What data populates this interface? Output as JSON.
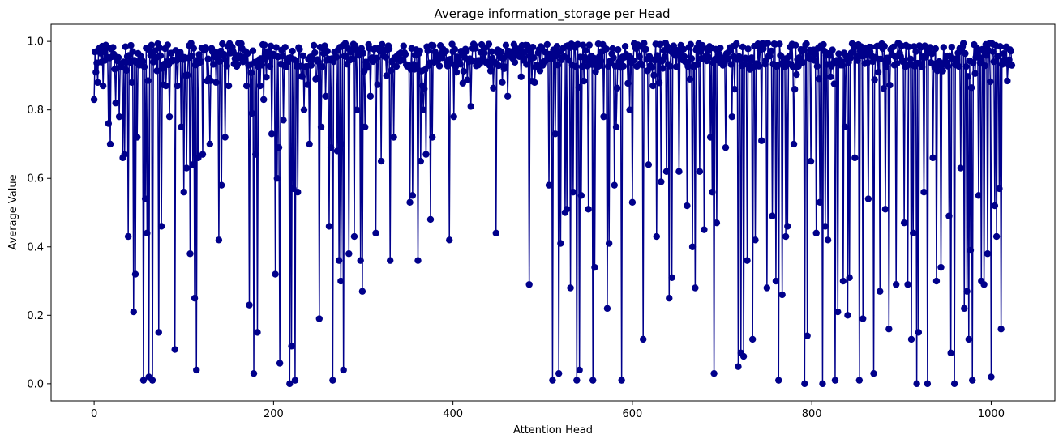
{
  "chart_data": {
    "type": "line",
    "title": "Average information_storage per Head",
    "xlabel": "Attention Head",
    "ylabel": "Average Value",
    "xlim": [
      -48,
      1071
    ],
    "ylim": [
      -0.05,
      1.05
    ],
    "xticks": [
      0,
      200,
      400,
      600,
      800,
      1000
    ],
    "yticks": [
      0.0,
      0.2,
      0.4,
      0.6,
      0.8,
      1.0
    ],
    "xtick_labels": [
      "0",
      "200",
      "400",
      "600",
      "800",
      "1000"
    ],
    "ytick_labels": [
      "0.0",
      "0.2",
      "0.4",
      "0.6",
      "0.8",
      "1.0"
    ],
    "grid": false,
    "series": [
      {
        "color": "#00008b",
        "marker": "circle",
        "n_points": 1024,
        "baseline": 0.96,
        "values_note_removed": true,
        "dips": [
          [
            0,
            0.83
          ],
          [
            2,
            0.91
          ],
          [
            4,
            0.88
          ],
          [
            10,
            0.87
          ],
          [
            16,
            0.76
          ],
          [
            18,
            0.7
          ],
          [
            24,
            0.82
          ],
          [
            28,
            0.78
          ],
          [
            32,
            0.66
          ],
          [
            34,
            0.67
          ],
          [
            38,
            0.43
          ],
          [
            42,
            0.88
          ],
          [
            44,
            0.21
          ],
          [
            46,
            0.32
          ],
          [
            48,
            0.72
          ],
          [
            55,
            0.01
          ],
          [
            57,
            0.54
          ],
          [
            59,
            0.44
          ],
          [
            61,
            0.02
          ],
          [
            65,
            0.01
          ],
          [
            72,
            0.15
          ],
          [
            75,
            0.46
          ],
          [
            80,
            0.87
          ],
          [
            84,
            0.78
          ],
          [
            90,
            0.1
          ],
          [
            93,
            0.87
          ],
          [
            97,
            0.75
          ],
          [
            100,
            0.56
          ],
          [
            103,
            0.63
          ],
          [
            107,
            0.38
          ],
          [
            110,
            0.64
          ],
          [
            112,
            0.25
          ],
          [
            114,
            0.04
          ],
          [
            116,
            0.66
          ],
          [
            121,
            0.67
          ],
          [
            129,
            0.7
          ],
          [
            136,
            0.88
          ],
          [
            139,
            0.42
          ],
          [
            142,
            0.58
          ],
          [
            146,
            0.72
          ],
          [
            170,
            0.87
          ],
          [
            173,
            0.23
          ],
          [
            176,
            0.79
          ],
          [
            178,
            0.03
          ],
          [
            180,
            0.67
          ],
          [
            182,
            0.15
          ],
          [
            185,
            0.87
          ],
          [
            189,
            0.83
          ],
          [
            198,
            0.73
          ],
          [
            202,
            0.32
          ],
          [
            204,
            0.6
          ],
          [
            206,
            0.69
          ],
          [
            207,
            0.06
          ],
          [
            211,
            0.77
          ],
          [
            218,
            0.0
          ],
          [
            220,
            0.11
          ],
          [
            222,
            0.57
          ],
          [
            224,
            0.01
          ],
          [
            227,
            0.56
          ],
          [
            234,
            0.8
          ],
          [
            240,
            0.7
          ],
          [
            247,
            0.89
          ],
          [
            251,
            0.19
          ],
          [
            253,
            0.75
          ],
          [
            258,
            0.84
          ],
          [
            262,
            0.46
          ],
          [
            264,
            0.69
          ],
          [
            266,
            0.01
          ],
          [
            271,
            0.68
          ],
          [
            273,
            0.36
          ],
          [
            275,
            0.3
          ],
          [
            276,
            0.7
          ],
          [
            278,
            0.04
          ],
          [
            284,
            0.38
          ],
          [
            290,
            0.43
          ],
          [
            293,
            0.8
          ],
          [
            297,
            0.36
          ],
          [
            299,
            0.27
          ],
          [
            302,
            0.75
          ],
          [
            308,
            0.84
          ],
          [
            314,
            0.44
          ],
          [
            320,
            0.65
          ],
          [
            326,
            0.9
          ],
          [
            330,
            0.36
          ],
          [
            334,
            0.72
          ],
          [
            352,
            0.53
          ],
          [
            355,
            0.55
          ],
          [
            361,
            0.36
          ],
          [
            364,
            0.65
          ],
          [
            367,
            0.8
          ],
          [
            370,
            0.67
          ],
          [
            375,
            0.48
          ],
          [
            377,
            0.72
          ],
          [
            396,
            0.42
          ],
          [
            401,
            0.78
          ],
          [
            404,
            0.91
          ],
          [
            420,
            0.81
          ],
          [
            448,
            0.44
          ],
          [
            461,
            0.84
          ],
          [
            485,
            0.29
          ],
          [
            491,
            0.88
          ],
          [
            507,
            0.58
          ],
          [
            511,
            0.01
          ],
          [
            514,
            0.73
          ],
          [
            518,
            0.03
          ],
          [
            520,
            0.41
          ],
          [
            525,
            0.5
          ],
          [
            527,
            0.51
          ],
          [
            531,
            0.28
          ],
          [
            534,
            0.56
          ],
          [
            538,
            0.01
          ],
          [
            541,
            0.04
          ],
          [
            543,
            0.55
          ],
          [
            551,
            0.51
          ],
          [
            556,
            0.01
          ],
          [
            558,
            0.34
          ],
          [
            568,
            0.78
          ],
          [
            572,
            0.22
          ],
          [
            574,
            0.41
          ],
          [
            580,
            0.58
          ],
          [
            582,
            0.75
          ],
          [
            588,
            0.01
          ],
          [
            597,
            0.8
          ],
          [
            600,
            0.53
          ],
          [
            612,
            0.13
          ],
          [
            618,
            0.64
          ],
          [
            623,
            0.87
          ],
          [
            627,
            0.43
          ],
          [
            632,
            0.59
          ],
          [
            638,
            0.62
          ],
          [
            641,
            0.25
          ],
          [
            644,
            0.31
          ],
          [
            652,
            0.62
          ],
          [
            661,
            0.52
          ],
          [
            667,
            0.4
          ],
          [
            670,
            0.28
          ],
          [
            675,
            0.62
          ],
          [
            680,
            0.45
          ],
          [
            687,
            0.72
          ],
          [
            689,
            0.56
          ],
          [
            691,
            0.03
          ],
          [
            694,
            0.47
          ],
          [
            704,
            0.69
          ],
          [
            711,
            0.78
          ],
          [
            718,
            0.05
          ],
          [
            721,
            0.09
          ],
          [
            724,
            0.08
          ],
          [
            728,
            0.36
          ],
          [
            734,
            0.13
          ],
          [
            737,
            0.42
          ],
          [
            744,
            0.71
          ],
          [
            750,
            0.28
          ],
          [
            756,
            0.49
          ],
          [
            760,
            0.3
          ],
          [
            763,
            0.01
          ],
          [
            767,
            0.26
          ],
          [
            771,
            0.43
          ],
          [
            773,
            0.46
          ],
          [
            780,
            0.7
          ],
          [
            792,
            0.0
          ],
          [
            795,
            0.14
          ],
          [
            799,
            0.65
          ],
          [
            805,
            0.44
          ],
          [
            809,
            0.53
          ],
          [
            812,
            0.0
          ],
          [
            815,
            0.46
          ],
          [
            818,
            0.42
          ],
          [
            826,
            0.01
          ],
          [
            829,
            0.21
          ],
          [
            835,
            0.3
          ],
          [
            837,
            0.75
          ],
          [
            840,
            0.2
          ],
          [
            842,
            0.31
          ],
          [
            848,
            0.66
          ],
          [
            853,
            0.01
          ],
          [
            857,
            0.19
          ],
          [
            863,
            0.54
          ],
          [
            869,
            0.03
          ],
          [
            876,
            0.27
          ],
          [
            882,
            0.51
          ],
          [
            886,
            0.16
          ],
          [
            894,
            0.29
          ],
          [
            903,
            0.47
          ],
          [
            907,
            0.29
          ],
          [
            911,
            0.13
          ],
          [
            913,
            0.44
          ],
          [
            917,
            0.0
          ],
          [
            919,
            0.15
          ],
          [
            925,
            0.56
          ],
          [
            929,
            0.0
          ],
          [
            935,
            0.66
          ],
          [
            939,
            0.3
          ],
          [
            944,
            0.34
          ],
          [
            953,
            0.49
          ],
          [
            955,
            0.09
          ],
          [
            959,
            0.0
          ],
          [
            966,
            0.63
          ],
          [
            970,
            0.22
          ],
          [
            973,
            0.27
          ],
          [
            975,
            0.13
          ],
          [
            977,
            0.39
          ],
          [
            979,
            0.01
          ],
          [
            986,
            0.55
          ],
          [
            989,
            0.3
          ],
          [
            992,
            0.29
          ],
          [
            996,
            0.38
          ],
          [
            1000,
            0.02
          ],
          [
            1004,
            0.52
          ],
          [
            1006,
            0.43
          ],
          [
            1009,
            0.57
          ],
          [
            1011,
            0.16
          ],
          [
            1013,
            0.94
          ]
        ]
      }
    ]
  }
}
